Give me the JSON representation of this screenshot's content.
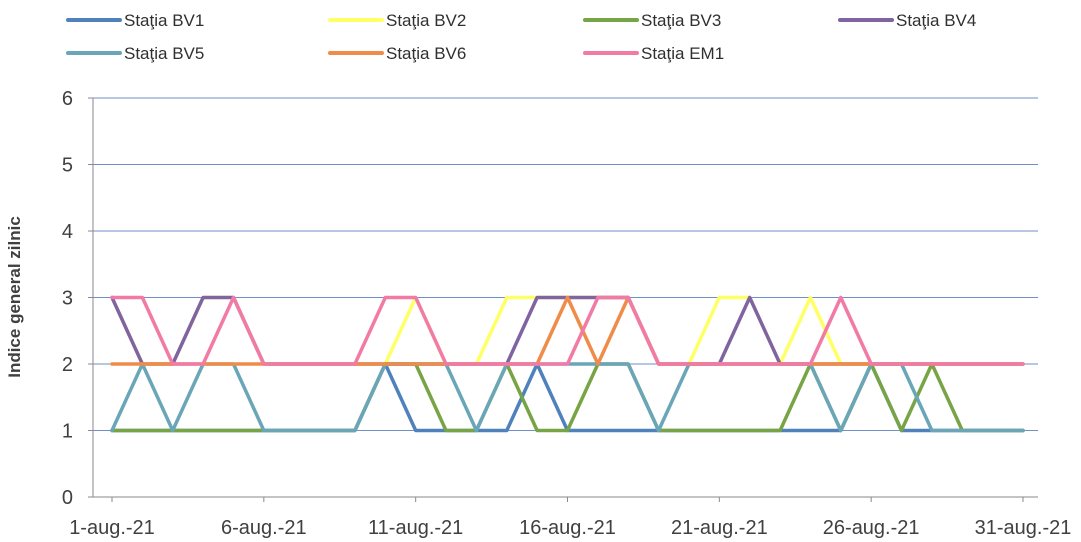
{
  "chart_data": {
    "type": "line",
    "title": "",
    "xlabel": "",
    "ylabel": "Indice general zilnic",
    "ylim": [
      0,
      6
    ],
    "yticks": [
      0,
      1,
      2,
      3,
      4,
      5,
      6
    ],
    "x_tick_labels": [
      "1-aug.-21",
      "6-aug.-21",
      "11-aug.-21",
      "16-aug.-21",
      "21-aug.-21",
      "26-aug.-21",
      "31-aug.-21"
    ],
    "grid": "horizontal",
    "legend_position": "top",
    "x": [
      1,
      2,
      3,
      4,
      5,
      6,
      7,
      8,
      9,
      10,
      11,
      12,
      13,
      14,
      15,
      16,
      17,
      18,
      19,
      20,
      21,
      22,
      23,
      24,
      25,
      26,
      27,
      28,
      29,
      30,
      31
    ],
    "series": [
      {
        "name": "Staţia BV1",
        "color": "#4f81bd",
        "values": [
          1,
          1,
          1,
          1,
          1,
          1,
          1,
          1,
          1,
          2,
          1,
          1,
          1,
          1,
          2,
          1,
          1,
          1,
          1,
          1,
          1,
          1,
          1,
          1,
          1,
          2,
          1,
          1,
          1,
          1,
          1
        ]
      },
      {
        "name": "Staţia BV2",
        "color": "#ffff66",
        "values": [
          3,
          2,
          2,
          3,
          3,
          2,
          2,
          2,
          2,
          2,
          3,
          2,
          2,
          3,
          3,
          3,
          3,
          3,
          2,
          2,
          3,
          3,
          2,
          3,
          2,
          2,
          2,
          2,
          2,
          2,
          2
        ]
      },
      {
        "name": "Staţia BV3",
        "color": "#77a444",
        "values": [
          1,
          1,
          1,
          1,
          1,
          1,
          1,
          1,
          1,
          2,
          2,
          1,
          1,
          2,
          1,
          1,
          2,
          2,
          1,
          1,
          1,
          1,
          1,
          2,
          1,
          2,
          1,
          2,
          1,
          1,
          1
        ]
      },
      {
        "name": "Staţia BV4",
        "color": "#8064a2",
        "values": [
          3,
          2,
          2,
          3,
          3,
          2,
          2,
          2,
          2,
          2,
          2,
          2,
          2,
          2,
          3,
          3,
          3,
          3,
          2,
          2,
          2,
          3,
          2,
          2,
          2,
          2,
          2,
          2,
          2,
          2,
          2
        ]
      },
      {
        "name": "Staţia BV5",
        "color": "#6aa6b8",
        "values": [
          1,
          2,
          1,
          2,
          2,
          1,
          1,
          1,
          1,
          2,
          2,
          2,
          1,
          2,
          2,
          2,
          2,
          2,
          1,
          2,
          2,
          2,
          2,
          2,
          1,
          2,
          2,
          1,
          1,
          1,
          1
        ]
      },
      {
        "name": "Staţia BV6",
        "color": "#f08c4a",
        "values": [
          2,
          2,
          2,
          2,
          2,
          2,
          2,
          2,
          2,
          2,
          2,
          2,
          2,
          2,
          2,
          3,
          2,
          3,
          2,
          2,
          2,
          2,
          2,
          2,
          2,
          2,
          2,
          2,
          2,
          2,
          2
        ]
      },
      {
        "name": "Staţia EM1",
        "color": "#f27ba6",
        "values": [
          3,
          3,
          2,
          2,
          3,
          2,
          2,
          2,
          2,
          3,
          3,
          2,
          2,
          2,
          2,
          2,
          3,
          3,
          2,
          2,
          2,
          2,
          2,
          2,
          3,
          2,
          2,
          2,
          2,
          2,
          2
        ]
      }
    ]
  }
}
